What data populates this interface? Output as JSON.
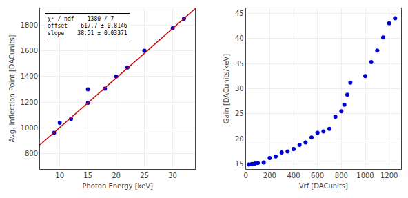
{
  "chart_data": [
    {
      "type": "scatter",
      "xlabel": "Photon Energy [keV]",
      "ylabel": "Avg. Inflection Point [DACunits]",
      "series": [
        {
          "type": "scatter",
          "color": "#0000cc",
          "x": [
            9,
            10,
            12,
            15,
            15,
            18,
            20,
            22,
            25,
            30,
            32
          ],
          "values": [
            962,
            1040,
            1070,
            1195,
            1300,
            1305,
            1400,
            1470,
            1600,
            1775,
            1850
          ]
        },
        {
          "type": "line",
          "color": "#cc0000",
          "x": [
            6.5,
            34
          ],
          "values": [
            868.015,
            1927.04
          ]
        }
      ],
      "xlim": [
        6.5,
        34
      ],
      "ylim": [
        680,
        1930
      ],
      "xticks": [
        10,
        15,
        20,
        25,
        30
      ],
      "yticks": [
        800,
        1000,
        1200,
        1400,
        1600,
        1800
      ],
      "grid": true,
      "annotations": [
        "χ² / ndf    1380 / 7",
        "offset    617.7 ± 0.8146",
        "slope    38.51 ± 0.03371"
      ]
    },
    {
      "type": "scatter",
      "xlabel": "Vrf [DACunits]",
      "ylabel": "Gain [DACunits/keV]",
      "series": [
        {
          "type": "scatter",
          "color": "#0000cc",
          "x": [
            25,
            50,
            75,
            100,
            150,
            200,
            250,
            300,
            350,
            400,
            450,
            500,
            550,
            600,
            650,
            700,
            750,
            800,
            825,
            850,
            875,
            1000,
            1050,
            1100,
            1150,
            1200,
            1250
          ],
          "values": [
            14.9,
            15.0,
            15.1,
            15.2,
            15.3,
            16.2,
            16.5,
            17.3,
            17.5,
            18.0,
            18.8,
            19.3,
            20.3,
            21.2,
            21.5,
            22.0,
            24.4,
            25.5,
            26.8,
            28.8,
            31.2,
            32.5,
            35.3,
            37.6,
            40.2,
            43.0,
            44.0
          ]
        }
      ],
      "xlim": [
        0,
        1300
      ],
      "ylim": [
        14,
        46
      ],
      "xticks": [
        0,
        200,
        400,
        600,
        800,
        1000,
        1200
      ],
      "yticks": [
        15,
        20,
        25,
        30,
        35,
        40,
        45
      ],
      "grid": true
    }
  ]
}
